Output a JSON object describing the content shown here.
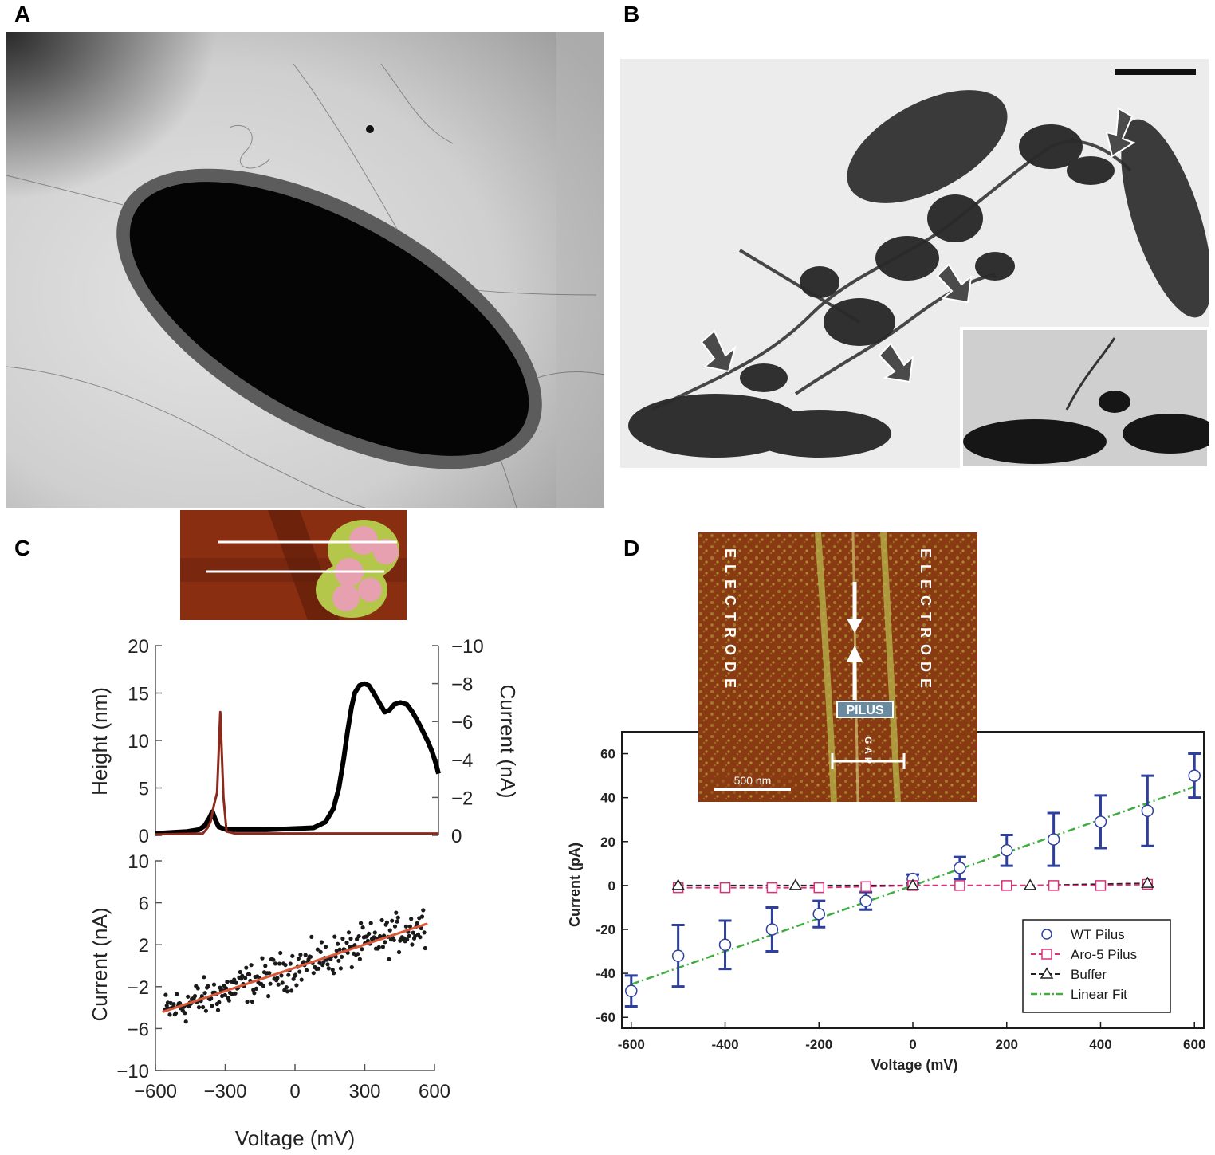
{
  "panels": {
    "a": {
      "letter": "A"
    },
    "b": {
      "letter": "B"
    },
    "c": {
      "letter": "C"
    },
    "d": {
      "letter": "D"
    }
  },
  "inset_d": {
    "electrode_left": "ELECTRODE",
    "electrode_right": "ELECTRODE",
    "pilus_label": "PILUS",
    "gap_label": "GAP",
    "scale_label": "500 nm"
  },
  "chart_data": [
    {
      "id": "c-top",
      "type": "line",
      "ylabel": "Height (nm)",
      "y2label": "Current (nA)",
      "ylim": [
        0,
        20
      ],
      "y2lim": [
        0,
        -10
      ],
      "yticks": [
        "0",
        "5",
        "10",
        "15",
        "20"
      ],
      "y2ticks": [
        "0",
        "−2",
        "−4",
        "−6",
        "−8",
        "−10"
      ],
      "series": [
        {
          "color": "#000000",
          "x": [
            0,
            20,
            40,
            55,
            62,
            68,
            72,
            76,
            80,
            90,
            110,
            140,
            170,
            200,
            215,
            225,
            232,
            238,
            243,
            248,
            252,
            258,
            264,
            270,
            276,
            283,
            290,
            296,
            302,
            310,
            318,
            325,
            332,
            338,
            344,
            350,
            355,
            358
          ],
          "y": [
            0.2,
            0.3,
            0.4,
            0.6,
            1.0,
            1.8,
            2.5,
            1.6,
            0.9,
            0.6,
            0.6,
            0.6,
            0.7,
            0.8,
            1.4,
            2.8,
            5.0,
            8.0,
            11.0,
            13.5,
            15.0,
            15.8,
            16.0,
            15.8,
            15.0,
            14.0,
            13.0,
            13.2,
            13.8,
            14.0,
            13.8,
            13.0,
            12.0,
            11.0,
            10.0,
            8.8,
            7.5,
            6.5
          ]
        },
        {
          "color": "#8b2a1a",
          "x": [
            0,
            60,
            66,
            70,
            74,
            78,
            82,
            86,
            90,
            100,
            150,
            200,
            250,
            300,
            358
          ],
          "y": [
            0.1,
            0.2,
            0.8,
            1.5,
            3.2,
            4.5,
            13.0,
            4.0,
            0.4,
            0.2,
            0.2,
            0.2,
            0.2,
            0.2,
            0.2
          ]
        }
      ]
    },
    {
      "id": "c-bottom",
      "type": "scatter",
      "xlabel": "Voltage (mV)",
      "ylabel": "Current (nA)",
      "xlim": [
        -600,
        600
      ],
      "ylim": [
        -10,
        10
      ],
      "xticks": [
        "−600",
        "−300",
        "0",
        "300",
        "600"
      ],
      "yticks": [
        "−10",
        "−6",
        "−2",
        "2",
        "6",
        "10"
      ],
      "fit": {
        "slope": 0.0074,
        "intercept": -0.2,
        "color": "#d9583a"
      },
      "noise_sd": 0.9,
      "n_points": 260
    },
    {
      "id": "d",
      "type": "scatter",
      "xlabel": "Voltage (mV)",
      "ylabel": "Current (pA)",
      "xlim": [
        -620,
        620
      ],
      "ylim": [
        -65,
        70
      ],
      "xticks": [
        "-600",
        "-400",
        "-200",
        "0",
        "200",
        "400",
        "600"
      ],
      "yticks": [
        "-60",
        "-40",
        "-20",
        "0",
        "20",
        "40",
        "60"
      ],
      "series": [
        {
          "name": "WT Pilus",
          "color": "#2e3f9e",
          "x": [
            -600,
            -500,
            -400,
            -300,
            -200,
            -100,
            0,
            100,
            200,
            300,
            400,
            500,
            600
          ],
          "y": [
            -48,
            -32,
            -27,
            -20,
            -13,
            -7,
            3,
            8,
            16,
            21,
            29,
            34,
            50
          ],
          "err": [
            7,
            14,
            11,
            10,
            6,
            4,
            2,
            5,
            7,
            12,
            12,
            16,
            10
          ]
        },
        {
          "name": "Aro-5 Pilus",
          "color": "#d8327a",
          "x": [
            -500,
            -400,
            -300,
            -200,
            -100,
            0,
            100,
            200,
            300,
            400,
            500
          ],
          "y": [
            -1,
            -1,
            -1,
            -1,
            -0.5,
            0,
            0,
            0,
            0,
            0,
            0.5
          ]
        },
        {
          "name": "Buffer",
          "color": "#222222",
          "x": [
            -500,
            -250,
            0,
            250,
            500
          ],
          "y": [
            0,
            0,
            0,
            0,
            1
          ]
        },
        {
          "name": "Linear Fit",
          "color": "#3fae3f",
          "slope": 0.075,
          "intercept": 0
        }
      ],
      "legend": "bottom-right"
    }
  ]
}
